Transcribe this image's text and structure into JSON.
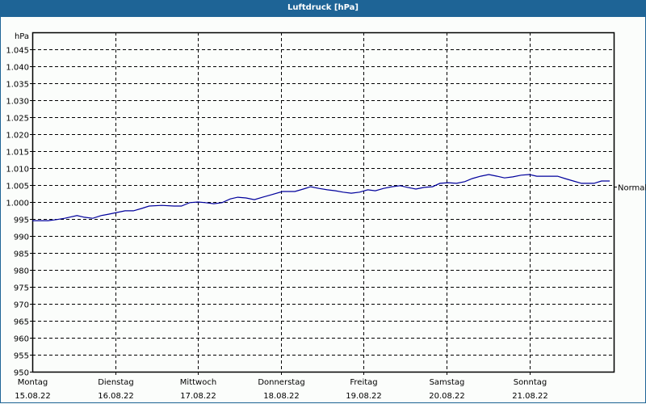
{
  "window": {
    "title": "Luftdruck [hPa]"
  },
  "chart_data": {
    "type": "line",
    "title": "Luftdruck [hPa]",
    "ylabel": "hPa",
    "xlabel": "",
    "ylim": [
      950,
      1050
    ],
    "yticks": [
      1045,
      1040,
      1035,
      1030,
      1025,
      1020,
      1015,
      1010,
      1005,
      1000,
      995,
      990,
      985,
      980,
      975,
      970,
      965,
      960,
      955,
      950
    ],
    "ytick_labels": [
      "1.045",
      "1.040",
      "1.035",
      "1.030",
      "1.025",
      "1.020",
      "1.015",
      "1.010",
      "1.005",
      "1.000",
      "995",
      "990",
      "985",
      "980",
      "975",
      "970",
      "965",
      "960",
      "955",
      "950"
    ],
    "x_categories": [
      {
        "day": "Montag",
        "date": "15.08.22"
      },
      {
        "day": "Dienstag",
        "date": "16.08.22"
      },
      {
        "day": "Mittwoch",
        "date": "17.08.22"
      },
      {
        "day": "Donnerstag",
        "date": "18.08.22"
      },
      {
        "day": "Freitag",
        "date": "19.08.22"
      },
      {
        "day": "Samstag",
        "date": "20.08.22"
      },
      {
        "day": "Sonntag",
        "date": "21.08.22"
      }
    ],
    "grid": true,
    "reference_line": {
      "label": "Normal",
      "value": 1004.5
    },
    "series": [
      {
        "name": "Luftdruck",
        "color": "#00009c",
        "x_days": [
          0,
          0.1,
          0.19,
          0.29,
          0.39,
          0.54,
          0.63,
          0.73,
          0.83,
          0.92,
          1.02,
          1.12,
          1.22,
          1.32,
          1.41,
          1.56,
          1.71,
          1.8,
          1.9,
          2.0,
          2.09,
          2.19,
          2.29,
          2.39,
          2.48,
          2.58,
          2.68,
          2.78,
          2.88,
          3.02,
          3.17,
          3.27,
          3.36,
          3.46,
          3.56,
          3.66,
          3.75,
          3.85,
          3.95,
          4.05,
          4.14,
          4.24,
          4.34,
          4.44,
          4.53,
          4.63,
          4.73,
          4.83,
          4.92,
          5.02,
          5.12,
          5.22,
          5.31,
          5.41,
          5.51,
          5.61,
          5.7,
          5.8,
          5.9,
          6.0,
          6.09,
          6.19,
          6.34,
          6.43,
          6.53,
          6.63,
          6.78,
          6.87,
          6.97
        ],
        "values": [
          994.5,
          994.5,
          994.5,
          994.8,
          995.2,
          996.0,
          995.5,
          995.2,
          996.0,
          996.4,
          996.9,
          997.4,
          997.4,
          998.1,
          998.8,
          999.0,
          998.8,
          998.8,
          999.8,
          1000.0,
          999.8,
          999.5,
          999.8,
          1000.9,
          1001.4,
          1001.2,
          1000.7,
          1001.4,
          1002.1,
          1003.1,
          1003.1,
          1003.8,
          1004.5,
          1004.0,
          1003.6,
          1003.3,
          1002.9,
          1002.6,
          1002.9,
          1003.6,
          1003.3,
          1004.0,
          1004.5,
          1004.8,
          1004.3,
          1003.8,
          1004.3,
          1004.5,
          1005.5,
          1005.7,
          1005.5,
          1006.0,
          1006.9,
          1007.6,
          1008.1,
          1007.6,
          1007.1,
          1007.4,
          1007.9,
          1008.1,
          1007.6,
          1007.6,
          1007.6,
          1006.9,
          1006.2,
          1005.5,
          1005.5,
          1006.2,
          1006.2
        ]
      }
    ]
  },
  "colors": {
    "titlebar": "#1e6496",
    "line": "#00009c",
    "background": "#fbfdfb"
  }
}
